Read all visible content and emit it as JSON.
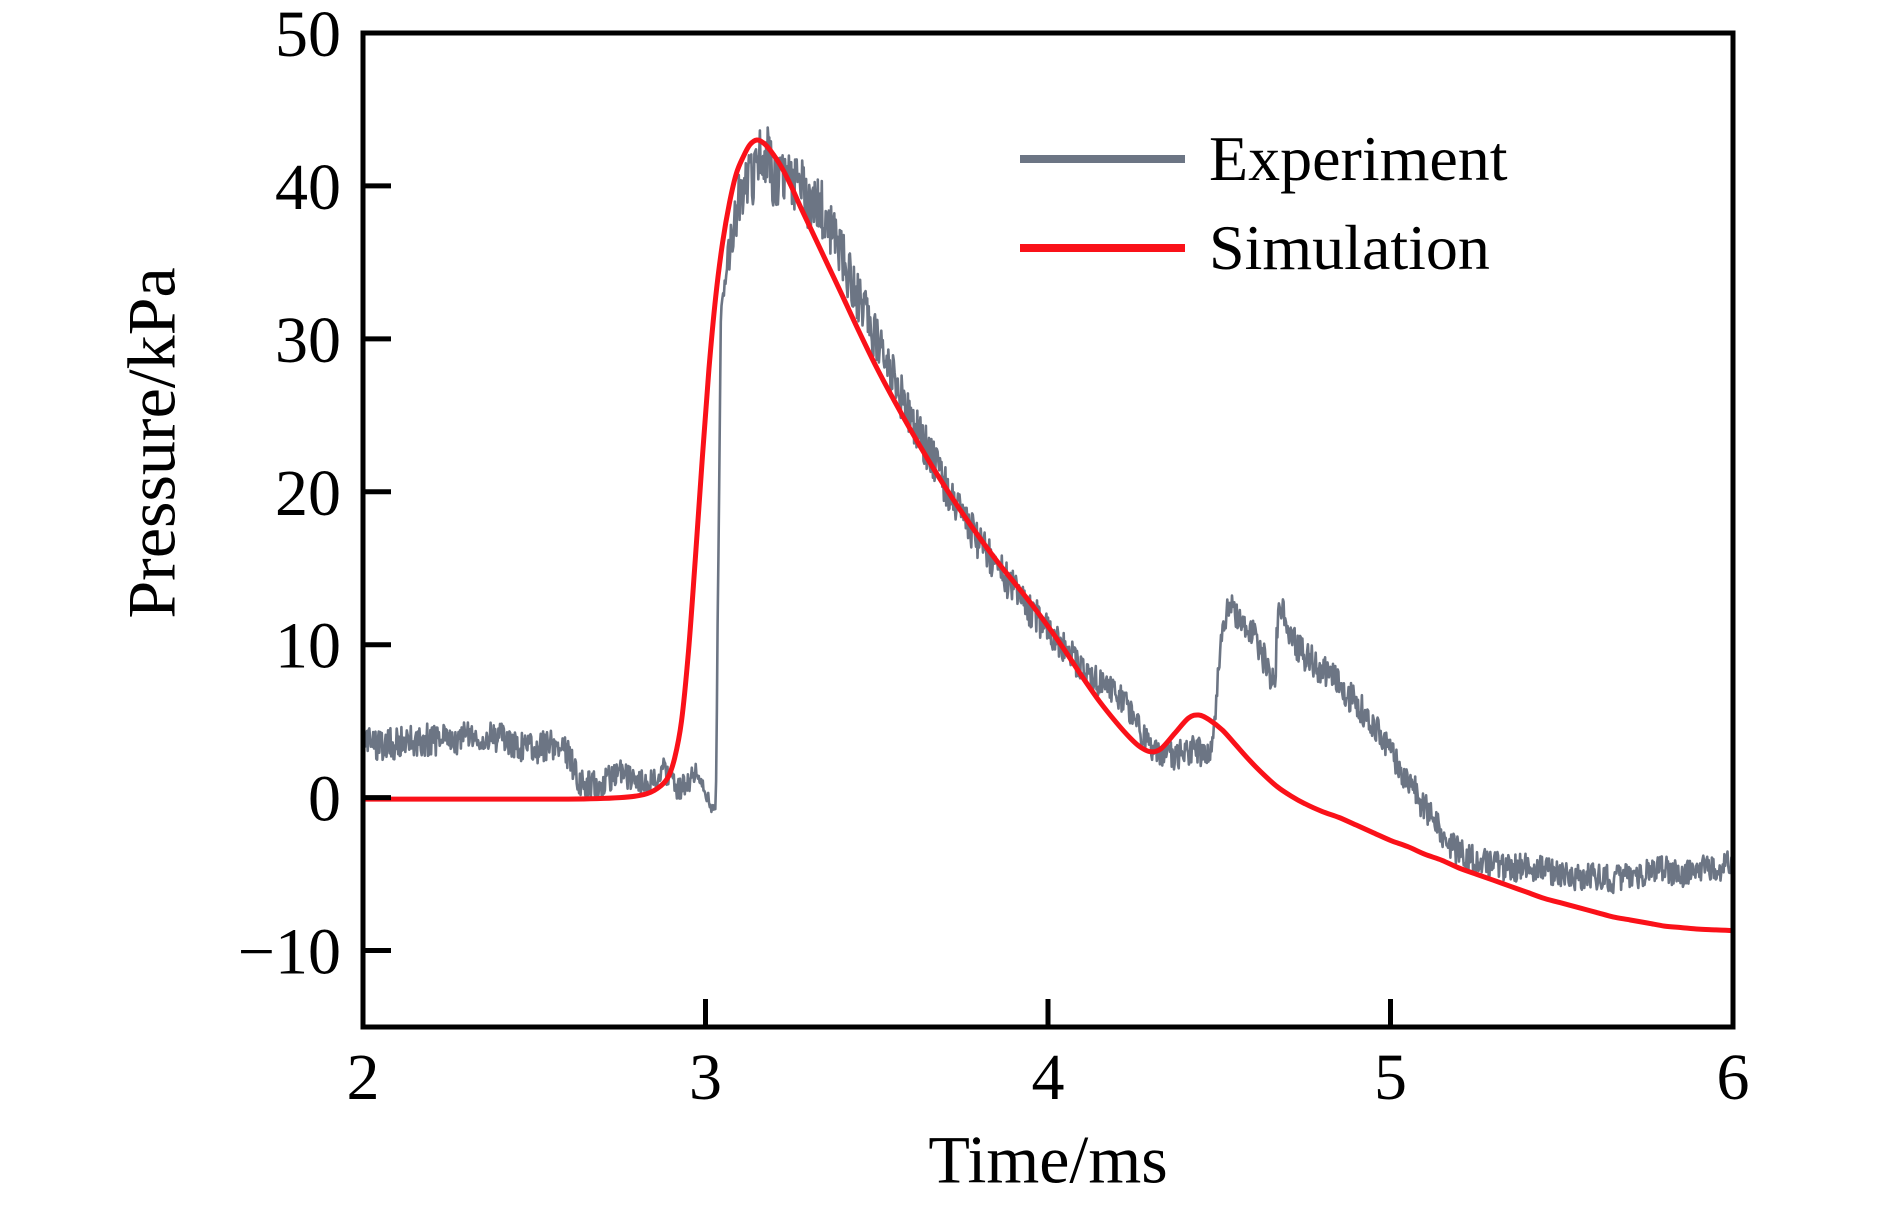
{
  "chart_data": {
    "type": "line",
    "title": "",
    "xlabel": "Time/ms",
    "ylabel": "Pressure/kPa",
    "xlim": [
      2,
      6
    ],
    "ylim": [
      -15,
      50
    ],
    "x_ticks": [
      2,
      3,
      4,
      5,
      6
    ],
    "y_ticks": [
      50,
      40,
      30,
      20,
      10,
      0,
      -10
    ],
    "grid": false,
    "legend_position": "upper-right-inside",
    "axis_color": "#000000",
    "series": [
      {
        "name": "Experiment",
        "color": "#6c7584",
        "style": "noisy",
        "line_width": 2.6,
        "noise_seed": 20240615,
        "noise_amplitude": [
          [
            2.0,
            1.1
          ],
          [
            2.6,
            1.0
          ],
          [
            2.95,
            0.8
          ],
          [
            3.03,
            0.45
          ],
          [
            3.06,
            1.4
          ],
          [
            3.12,
            2.0
          ],
          [
            3.25,
            2.1
          ],
          [
            3.45,
            1.7
          ],
          [
            3.7,
            1.3
          ],
          [
            4.0,
            1.1
          ],
          [
            4.3,
            0.9
          ],
          [
            4.5,
            1.0
          ],
          [
            4.8,
            1.1
          ],
          [
            5.1,
            1.0
          ],
          [
            5.5,
            0.9
          ],
          [
            6.0,
            0.9
          ]
        ],
        "points": [
          [
            2.0,
            3.4
          ],
          [
            2.06,
            3.5
          ],
          [
            2.12,
            3.6
          ],
          [
            2.18,
            3.8
          ],
          [
            2.24,
            3.7
          ],
          [
            2.3,
            4.0
          ],
          [
            2.36,
            4.1
          ],
          [
            2.42,
            3.8
          ],
          [
            2.46,
            3.3
          ],
          [
            2.5,
            3.2
          ],
          [
            2.55,
            3.5
          ],
          [
            2.6,
            2.8
          ],
          [
            2.63,
            1.2
          ],
          [
            2.66,
            0.8
          ],
          [
            2.7,
            0.8
          ],
          [
            2.73,
            1.6
          ],
          [
            2.76,
            1.7
          ],
          [
            2.8,
            0.8
          ],
          [
            2.84,
            1.1
          ],
          [
            2.88,
            1.8
          ],
          [
            2.91,
            0.6
          ],
          [
            2.94,
            0.7
          ],
          [
            2.97,
            1.8
          ],
          [
            2.99,
            1.0
          ],
          [
            3.01,
            -0.3
          ],
          [
            3.03,
            -0.9
          ],
          [
            3.045,
            32.0
          ],
          [
            3.06,
            34.5
          ],
          [
            3.08,
            37.0
          ],
          [
            3.1,
            39.3
          ],
          [
            3.12,
            40.3
          ],
          [
            3.14,
            40.8
          ],
          [
            3.16,
            42.3
          ],
          [
            3.18,
            42.0
          ],
          [
            3.2,
            40.6
          ],
          [
            3.22,
            40.1
          ],
          [
            3.24,
            41.0
          ],
          [
            3.26,
            39.7
          ],
          [
            3.28,
            40.1
          ],
          [
            3.3,
            38.7
          ],
          [
            3.33,
            38.9
          ],
          [
            3.36,
            37.4
          ],
          [
            3.39,
            36.0
          ],
          [
            3.42,
            34.0
          ],
          [
            3.46,
            32.0
          ],
          [
            3.5,
            29.8
          ],
          [
            3.54,
            27.8
          ],
          [
            3.58,
            25.8
          ],
          [
            3.62,
            24.0
          ],
          [
            3.66,
            22.2
          ],
          [
            3.7,
            20.5
          ],
          [
            3.74,
            18.9
          ],
          [
            3.78,
            17.4
          ],
          [
            3.82,
            16.0
          ],
          [
            3.86,
            14.8
          ],
          [
            3.9,
            13.6
          ],
          [
            3.94,
            12.5
          ],
          [
            3.98,
            11.5
          ],
          [
            4.02,
            10.5
          ],
          [
            4.06,
            9.4
          ],
          [
            4.1,
            8.5
          ],
          [
            4.14,
            7.7
          ],
          [
            4.18,
            7.3
          ],
          [
            4.22,
            6.3
          ],
          [
            4.26,
            4.7
          ],
          [
            4.3,
            3.2
          ],
          [
            4.34,
            2.6
          ],
          [
            4.38,
            2.8
          ],
          [
            4.42,
            3.2
          ],
          [
            4.45,
            3.0
          ],
          [
            4.47,
            2.4
          ],
          [
            4.49,
            6.0
          ],
          [
            4.505,
            10.0
          ],
          [
            4.52,
            11.9
          ],
          [
            4.54,
            12.4
          ],
          [
            4.56,
            11.9
          ],
          [
            4.59,
            11.1
          ],
          [
            4.62,
            9.7
          ],
          [
            4.65,
            8.0
          ],
          [
            4.662,
            7.2
          ],
          [
            4.672,
            12.8
          ],
          [
            4.69,
            11.9
          ],
          [
            4.71,
            10.4
          ],
          [
            4.74,
            9.5
          ],
          [
            4.78,
            8.8
          ],
          [
            4.82,
            8.0
          ],
          [
            4.86,
            7.1
          ],
          [
            4.9,
            6.1
          ],
          [
            4.94,
            5.0
          ],
          [
            4.98,
            3.7
          ],
          [
            5.02,
            2.3
          ],
          [
            5.06,
            0.9
          ],
          [
            5.1,
            -0.7
          ],
          [
            5.14,
            -2.1
          ],
          [
            5.18,
            -3.2
          ],
          [
            5.22,
            -3.9
          ],
          [
            5.26,
            -4.2
          ],
          [
            5.3,
            -4.4
          ],
          [
            5.35,
            -4.6
          ],
          [
            5.4,
            -4.5
          ],
          [
            5.45,
            -4.8
          ],
          [
            5.5,
            -5.0
          ],
          [
            5.55,
            -5.3
          ],
          [
            5.6,
            -5.1
          ],
          [
            5.65,
            -5.4
          ],
          [
            5.7,
            -5.2
          ],
          [
            5.75,
            -4.9
          ],
          [
            5.8,
            -4.7
          ],
          [
            5.85,
            -5.0
          ],
          [
            5.9,
            -4.5
          ],
          [
            5.95,
            -4.7
          ],
          [
            6.0,
            -4.1
          ]
        ]
      },
      {
        "name": "Simulation",
        "color": "#fa1119",
        "style": "smooth",
        "line_width": 5,
        "points": [
          [
            2.0,
            -0.1
          ],
          [
            2.3,
            -0.1
          ],
          [
            2.6,
            -0.1
          ],
          [
            2.75,
            0.0
          ],
          [
            2.82,
            0.2
          ],
          [
            2.86,
            0.6
          ],
          [
            2.89,
            1.3
          ],
          [
            2.91,
            2.6
          ],
          [
            2.93,
            5.0
          ],
          [
            2.95,
            9.5
          ],
          [
            2.97,
            15.5
          ],
          [
            2.99,
            22.0
          ],
          [
            3.01,
            28.0
          ],
          [
            3.03,
            32.8
          ],
          [
            3.05,
            36.3
          ],
          [
            3.07,
            38.9
          ],
          [
            3.09,
            40.8
          ],
          [
            3.11,
            41.9
          ],
          [
            3.13,
            42.7
          ],
          [
            3.15,
            43.0
          ],
          [
            3.17,
            42.8
          ],
          [
            3.19,
            42.3
          ],
          [
            3.22,
            41.3
          ],
          [
            3.25,
            40.0
          ],
          [
            3.28,
            38.5
          ],
          [
            3.32,
            36.6
          ],
          [
            3.36,
            34.7
          ],
          [
            3.4,
            32.8
          ],
          [
            3.45,
            30.4
          ],
          [
            3.5,
            28.1
          ],
          [
            3.55,
            26.0
          ],
          [
            3.6,
            24.0
          ],
          [
            3.65,
            22.1
          ],
          [
            3.7,
            20.3
          ],
          [
            3.75,
            18.6
          ],
          [
            3.8,
            17.0
          ],
          [
            3.85,
            15.5
          ],
          [
            3.9,
            14.1
          ],
          [
            3.95,
            12.7
          ],
          [
            4.0,
            11.2
          ],
          [
            4.05,
            9.6
          ],
          [
            4.1,
            7.9
          ],
          [
            4.15,
            6.3
          ],
          [
            4.2,
            4.9
          ],
          [
            4.24,
            3.9
          ],
          [
            4.27,
            3.3
          ],
          [
            4.3,
            3.0
          ],
          [
            4.33,
            3.2
          ],
          [
            4.37,
            4.2
          ],
          [
            4.41,
            5.2
          ],
          [
            4.44,
            5.4
          ],
          [
            4.47,
            5.1
          ],
          [
            4.51,
            4.4
          ],
          [
            4.55,
            3.4
          ],
          [
            4.59,
            2.4
          ],
          [
            4.63,
            1.5
          ],
          [
            4.67,
            0.7
          ],
          [
            4.71,
            0.1
          ],
          [
            4.75,
            -0.4
          ],
          [
            4.8,
            -0.9
          ],
          [
            4.85,
            -1.3
          ],
          [
            4.9,
            -1.8
          ],
          [
            4.95,
            -2.3
          ],
          [
            5.0,
            -2.8
          ],
          [
            5.05,
            -3.2
          ],
          [
            5.1,
            -3.7
          ],
          [
            5.15,
            -4.1
          ],
          [
            5.2,
            -4.6
          ],
          [
            5.25,
            -5.0
          ],
          [
            5.3,
            -5.4
          ],
          [
            5.35,
            -5.8
          ],
          [
            5.4,
            -6.2
          ],
          [
            5.45,
            -6.6
          ],
          [
            5.5,
            -6.9
          ],
          [
            5.55,
            -7.2
          ],
          [
            5.6,
            -7.5
          ],
          [
            5.65,
            -7.8
          ],
          [
            5.7,
            -8.0
          ],
          [
            5.75,
            -8.2
          ],
          [
            5.8,
            -8.4
          ],
          [
            5.85,
            -8.5
          ],
          [
            5.9,
            -8.6
          ],
          [
            5.95,
            -8.65
          ],
          [
            6.0,
            -8.7
          ]
        ]
      }
    ]
  }
}
